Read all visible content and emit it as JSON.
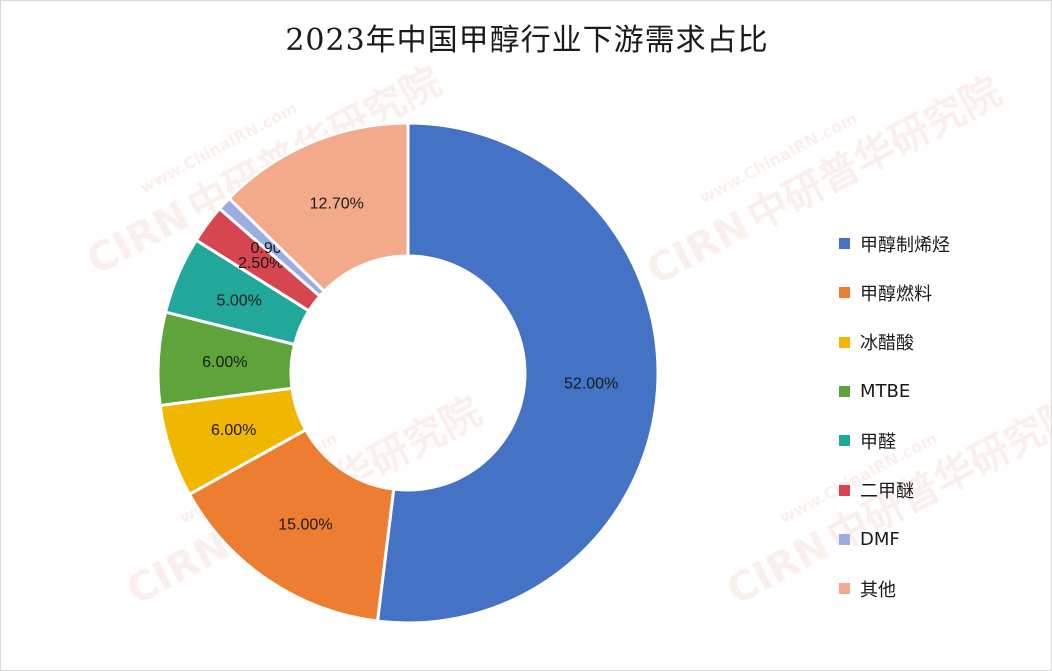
{
  "chart_data": {
    "type": "pie",
    "title": "2023年中国甲醇行业下游需求占比",
    "donut": true,
    "legend_position": "right",
    "categories": [
      "甲醇制烯烃",
      "甲醇燃料",
      "冰醋酸",
      "MTBE",
      "甲醛",
      "二甲醚",
      "DMF",
      "其他"
    ],
    "values": [
      52.0,
      15.0,
      6.0,
      6.0,
      5.0,
      2.5,
      0.9,
      12.7
    ],
    "value_labels": [
      "52.00%",
      "15.00%",
      "6.00%",
      "6.00%",
      "5.00%",
      "2.50%",
      "0.90%",
      "12.70%"
    ],
    "colors": [
      "#4472C4",
      "#ED7D31",
      "#F1B700",
      "#5FA43A",
      "#21A89A",
      "#D64550",
      "#9DACDF",
      "#F2AA8A"
    ]
  },
  "watermark": {
    "text": "中研普华研究院",
    "site": "www.ChinaIRN.com",
    "logo": "CIRN"
  }
}
